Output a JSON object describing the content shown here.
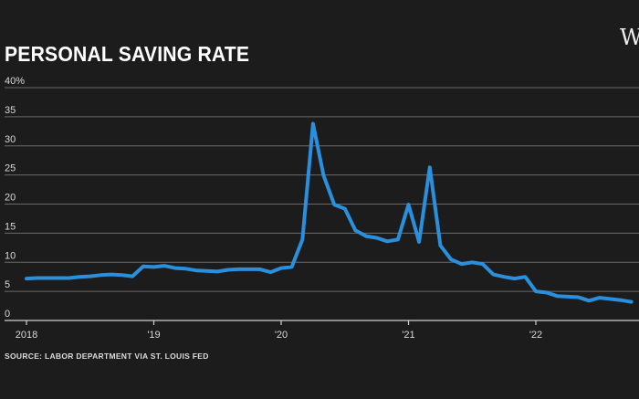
{
  "chart_data": {
    "type": "line",
    "title": "PERSONAL SAVING RATE",
    "source": "SOURCE: LABOR DEPARTMENT VIA  ST. LOUIS FED",
    "xlabel": "",
    "ylabel": "",
    "ylim": [
      0,
      40
    ],
    "yticks": [
      0,
      5,
      10,
      15,
      20,
      25,
      30,
      35,
      40
    ],
    "ytick_labels": [
      "0",
      "5",
      "10",
      "15",
      "20",
      "25",
      "30",
      "35",
      "40%"
    ],
    "xticks": [
      2018,
      2019,
      2020,
      2021,
      2022
    ],
    "xtick_labels": [
      "2018",
      "'19",
      "'20",
      "'21",
      "'22"
    ],
    "grid": true,
    "legend": "none",
    "series_color": "#2a8fdc",
    "x": [
      2018.0,
      2018.083,
      2018.167,
      2018.25,
      2018.333,
      2018.417,
      2018.5,
      2018.583,
      2018.667,
      2018.75,
      2018.833,
      2018.917,
      2019.0,
      2019.083,
      2019.167,
      2019.25,
      2019.333,
      2019.417,
      2019.5,
      2019.583,
      2019.667,
      2019.75,
      2019.833,
      2019.917,
      2020.0,
      2020.083,
      2020.167,
      2020.25,
      2020.333,
      2020.417,
      2020.5,
      2020.583,
      2020.667,
      2020.75,
      2020.833,
      2020.917,
      2021.0,
      2021.083,
      2021.167,
      2021.25,
      2021.333,
      2021.417,
      2021.5,
      2021.583,
      2021.667,
      2021.75,
      2021.833,
      2021.917,
      2022.0,
      2022.083,
      2022.167,
      2022.25,
      2022.333,
      2022.417,
      2022.5,
      2022.583,
      2022.667,
      2022.75
    ],
    "values": [
      7.2,
      7.3,
      7.3,
      7.3,
      7.3,
      7.5,
      7.6,
      7.8,
      7.9,
      7.8,
      7.6,
      9.3,
      9.2,
      9.4,
      9.0,
      8.9,
      8.6,
      8.5,
      8.4,
      8.7,
      8.8,
      8.8,
      8.8,
      8.3,
      9.0,
      9.2,
      13.9,
      33.8,
      24.9,
      19.9,
      19.2,
      15.5,
      14.5,
      14.2,
      13.6,
      13.9,
      19.9,
      13.5,
      26.3,
      12.9,
      10.5,
      9.7,
      10.0,
      9.7,
      7.9,
      7.5,
      7.2,
      7.5,
      5.0,
      4.8,
      4.2,
      4.1,
      4.0,
      3.4,
      3.9,
      3.7,
      3.5,
      3.2
    ]
  },
  "logo_text": "W"
}
